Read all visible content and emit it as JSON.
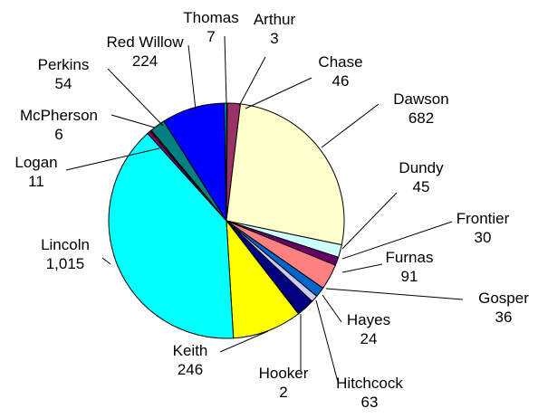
{
  "chart_data": {
    "type": "pie",
    "title": "",
    "slices": [
      {
        "label": "Arthur",
        "value_label": "3",
        "value": 3,
        "color": "#FFFFFF"
      },
      {
        "label": "Chase",
        "value_label": "46",
        "value": 46,
        "color": "#993366"
      },
      {
        "label": "Dawson",
        "value_label": "682",
        "value": 682,
        "color": "#FFFFCC"
      },
      {
        "label": "Dundy",
        "value_label": "45",
        "value": 45,
        "color": "#CCFFFF"
      },
      {
        "label": "Frontier",
        "value_label": "30",
        "value": 30,
        "color": "#660066"
      },
      {
        "label": "Furnas",
        "value_label": "91",
        "value": 91,
        "color": "#FF8080"
      },
      {
        "label": "Gosper",
        "value_label": "36",
        "value": 36,
        "color": "#0066CC"
      },
      {
        "label": "Hayes",
        "value_label": "24",
        "value": 24,
        "color": "#CCCCFF"
      },
      {
        "label": "Hitchcock",
        "value_label": "63",
        "value": 63,
        "color": "#000080"
      },
      {
        "label": "Hooker",
        "value_label": "2",
        "value": 2,
        "color": "#FF00FF"
      },
      {
        "label": "Keith",
        "value_label": "246",
        "value": 246,
        "color": "#FFFF00"
      },
      {
        "label": "Lincoln",
        "value_label": "1,015",
        "value": 1015,
        "color": "#00FFFF"
      },
      {
        "label": "Logan",
        "value_label": "11",
        "value": 11,
        "color": "#800080"
      },
      {
        "label": "McPherson",
        "value_label": "6",
        "value": 6,
        "color": "#800000"
      },
      {
        "label": "Perkins",
        "value_label": "54",
        "value": 54,
        "color": "#008080"
      },
      {
        "label": "Red Willow",
        "value_label": "224",
        "value": 224,
        "color": "#0000FF"
      },
      {
        "label": "Thomas",
        "value_label": "7",
        "value": 7,
        "color": "#00CCFF"
      }
    ]
  }
}
